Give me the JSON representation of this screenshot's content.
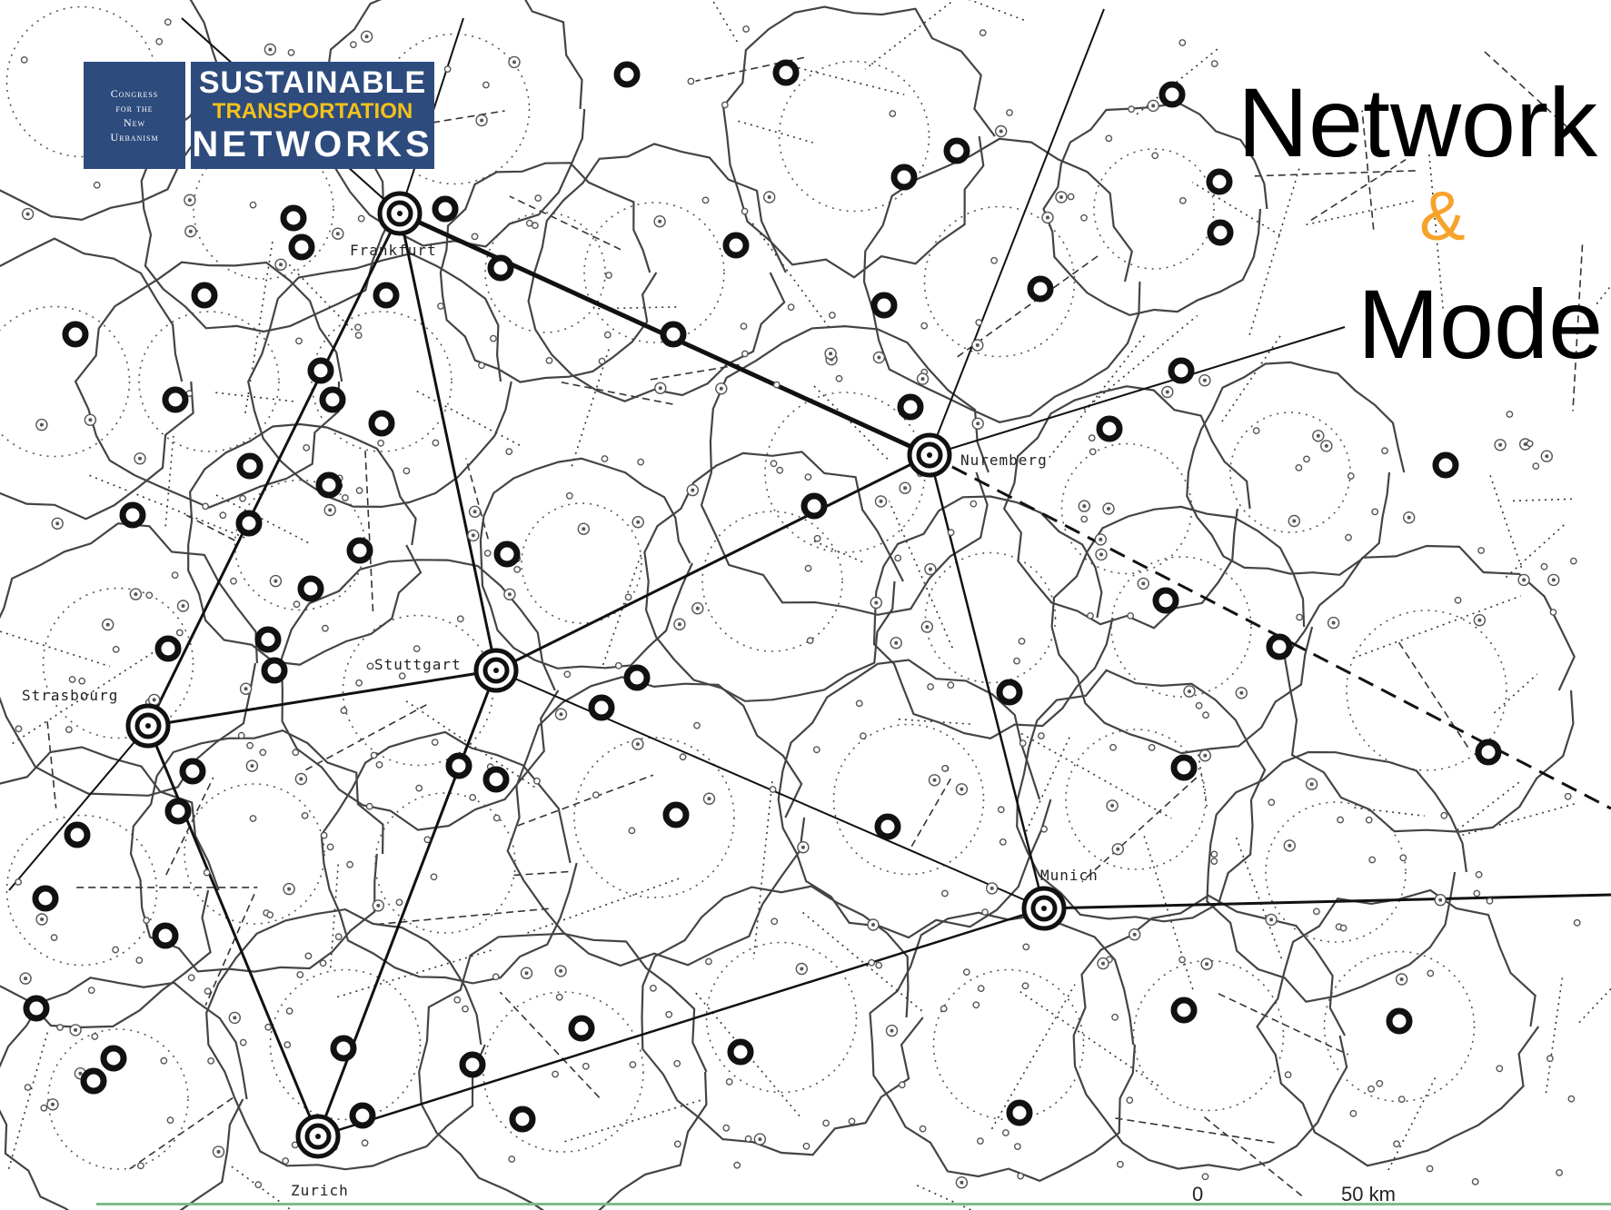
{
  "logo": {
    "org_line1": "Congress",
    "org_line2": "for the",
    "org_line3": "New",
    "org_line4": "Urbanism",
    "program_line1": "SUSTAINABLE",
    "program_line2": "TRANSPORTATION",
    "program_line3": "NETWORKS"
  },
  "title": {
    "line1": "Network",
    "ampersand": "&",
    "line2": "Mode"
  },
  "map": {
    "cities": [
      "Frankfurt",
      "Nuremberg",
      "Stuttgart",
      "Strasbourg",
      "Munich",
      "Zurich"
    ],
    "scale": {
      "start": "0",
      "end": "50 km"
    }
  },
  "colors": {
    "brand_blue": "#2e4b7d",
    "brand_yellow": "#f2c21b",
    "ampersand_orange": "#f7a32b",
    "footer_green": "#7fb98a"
  }
}
